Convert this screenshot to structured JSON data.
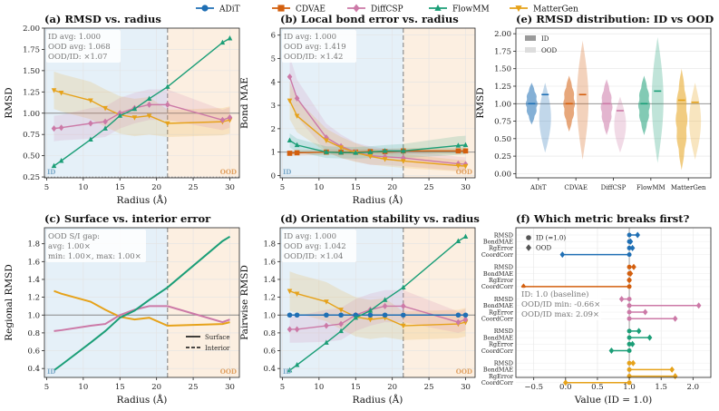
{
  "legend": {
    "entries": [
      {
        "name": "ADiT",
        "color": "#1f6fb4",
        "marker": "circle"
      },
      {
        "name": "CDVAE",
        "color": "#d35f0e",
        "marker": "square"
      },
      {
        "name": "DiffCSP",
        "color": "#cc79a7",
        "marker": "diamond"
      },
      {
        "name": "FlowMM",
        "color": "#1b9e77",
        "marker": "triangle-up"
      },
      {
        "name": "MatterGen",
        "color": "#e6a21a",
        "marker": "triangle-down"
      }
    ]
  },
  "chart_data": [
    {
      "id": "a",
      "type": "line",
      "title": "(a) RMSD vs. radius",
      "xlabel": "Radius (Å)",
      "ylabel": "RMSD",
      "xlim": [
        4.7,
        31.3
      ],
      "ylim": [
        0.24,
        2.0
      ],
      "xticks": [
        5,
        10,
        15,
        20,
        25,
        30
      ],
      "yticks": [
        0.25,
        0.5,
        0.75,
        1.0,
        1.25,
        1.5,
        1.75,
        2.0
      ],
      "ytick_labels": [
        "0.25",
        "0.50",
        "0.75",
        "1.00",
        "1.25",
        "1.50",
        "1.75",
        "2.00"
      ],
      "id_region": [
        4.7,
        21.5
      ],
      "ood_region": [
        21.5,
        31.3
      ],
      "boundary": 21.5,
      "region_labels": {
        "id": "ID",
        "ood": "OOD"
      },
      "hline": 1.0,
      "dotted_hline": 0.25,
      "annotation": [
        "ID avg: 1.000",
        "OOD avg: 1.068",
        "OOD/ID: ×1.07"
      ],
      "x": [
        6,
        7,
        11,
        13,
        15,
        17,
        19,
        21.5,
        29,
        30
      ],
      "series": [
        {
          "name": "MatterGen",
          "values": [
            1.27,
            1.24,
            1.15,
            1.06,
            0.98,
            0.95,
            0.97,
            0.88,
            0.9,
            0.92
          ],
          "band": [
            0.22,
            0.22,
            0.22,
            0.22,
            0.22,
            0.22,
            0.22,
            0.16,
            0.16,
            0.16
          ]
        },
        {
          "name": "DiffCSP",
          "values": [
            0.82,
            0.83,
            0.88,
            0.9,
            1.0,
            1.06,
            1.1,
            1.1,
            0.92,
            0.95
          ],
          "band": [
            0.15,
            0.15,
            0.18,
            0.18,
            0.18,
            0.18,
            0.18,
            0.18,
            0.12,
            0.12
          ]
        },
        {
          "name": "FlowMM",
          "values": [
            0.38,
            0.44,
            0.69,
            0.82,
            0.97,
            1.05,
            1.17,
            1.31,
            1.83,
            1.88
          ]
        }
      ]
    },
    {
      "id": "b",
      "type": "line",
      "title": "(b) Local bond error vs. radius",
      "xlabel": "Radius (Å)",
      "ylabel": "Bond MAE",
      "xlim": [
        4.7,
        31.3
      ],
      "ylim": [
        -0.1,
        6.3
      ],
      "xticks": [
        5,
        10,
        15,
        20,
        25,
        30
      ],
      "yticks": [
        0,
        1,
        2,
        3,
        4,
        5,
        6
      ],
      "id_region": [
        4.7,
        21.5
      ],
      "ood_region": [
        21.5,
        31.3
      ],
      "boundary": 21.5,
      "region_labels": {
        "id": "ID",
        "ood": "OOD"
      },
      "hline": 1.0,
      "annotation": [
        "ID avg: 1.000",
        "OOD avg: 1.419",
        "OOD/ID: ×1.42"
      ],
      "x": [
        6,
        7,
        11,
        13,
        15,
        17,
        19,
        21.5,
        29,
        30
      ],
      "series": [
        {
          "name": "CDVAE",
          "values": [
            0.95,
            0.97,
            1.0,
            1.0,
            1.0,
            1.02,
            1.02,
            1.05,
            1.05,
            1.05
          ],
          "band": [
            0.12,
            0.12,
            0.12,
            0.12,
            0.12,
            0.12,
            0.12,
            0.12,
            0.12,
            0.12
          ]
        },
        {
          "name": "DiffCSP",
          "values": [
            4.22,
            3.3,
            1.62,
            1.25,
            1.0,
            0.85,
            0.8,
            0.75,
            0.5,
            0.48
          ],
          "band": [
            0.9,
            0.8,
            0.6,
            0.5,
            0.4,
            0.4,
            0.35,
            0.35,
            0.3,
            0.3
          ]
        },
        {
          "name": "MatterGen",
          "values": [
            3.2,
            2.55,
            1.5,
            1.2,
            0.98,
            0.82,
            0.7,
            0.62,
            0.42,
            0.4
          ],
          "band": [
            0.8,
            0.7,
            0.5,
            0.45,
            0.4,
            0.35,
            0.3,
            0.3,
            0.25,
            0.25
          ]
        },
        {
          "name": "FlowMM",
          "values": [
            1.5,
            1.3,
            1.0,
            0.98,
            0.97,
            1.0,
            1.05,
            1.05,
            1.28,
            1.3
          ],
          "band": [
            0.3,
            0.28,
            0.25,
            0.25,
            0.25,
            0.25,
            0.25,
            0.3,
            0.4,
            0.4
          ]
        }
      ]
    },
    {
      "id": "e",
      "type": "violin",
      "title": "(e) RMSD distribution: ID vs OOD",
      "ylabel": "RMSD",
      "xlim": [
        -0.6,
        4.6
      ],
      "ylim": [
        -0.06,
        2.08
      ],
      "yticks": [
        0,
        0.25,
        0.5,
        0.75,
        1.0,
        1.25,
        1.5,
        1.75,
        2.0
      ],
      "ytick_labels": [
        "0.00",
        "0.25",
        "0.50",
        "0.75",
        "1.00",
        "1.25",
        "1.50",
        "1.75",
        "2.00"
      ],
      "hline": 1.0,
      "categories": [
        "ADiT",
        "CDVAE",
        "DiffCSP",
        "FlowMM",
        "MatterGen"
      ],
      "legend": [
        "ID",
        "OOD"
      ],
      "id_range": [
        [
          0.7,
          1.3
        ],
        [
          0.6,
          1.4
        ],
        [
          0.55,
          1.35
        ],
        [
          0.55,
          1.4
        ],
        [
          0.05,
          1.5
        ]
      ],
      "ood_range": [
        [
          0.3,
          1.3
        ],
        [
          0.2,
          1.9
        ],
        [
          0.3,
          1.1
        ],
        [
          0.15,
          1.95
        ],
        [
          0.2,
          1.3
        ]
      ],
      "id_median": [
        1.0,
        1.0,
        1.0,
        1.0,
        1.05
      ],
      "ood_median": [
        1.13,
        1.13,
        0.9,
        1.18,
        1.02
      ]
    },
    {
      "id": "c",
      "type": "line",
      "title": "(c) Surface vs. interior error",
      "xlabel": "Radius (Å)",
      "ylabel": "Regional RMSD",
      "xlim": [
        4.7,
        31.3
      ],
      "ylim": [
        0.3,
        1.98
      ],
      "xticks": [
        5,
        10,
        15,
        20,
        25,
        30
      ],
      "yticks": [
        0.4,
        0.6,
        0.8,
        1.0,
        1.2,
        1.4,
        1.6,
        1.8
      ],
      "ytick_labels": [
        "0.4",
        "0.6",
        "0.8",
        "1.0",
        "1.2",
        "1.4",
        "1.6",
        "1.8"
      ],
      "id_region": [
        4.7,
        21.5
      ],
      "ood_region": [
        21.5,
        31.3
      ],
      "boundary": 21.5,
      "region_labels": {
        "id": "ID",
        "ood": "OOD"
      },
      "hline": 1.0,
      "annotation": [
        "OOD S/I gap:",
        "avg: 1.00×",
        "min: 1.00×, max: 1.00×"
      ],
      "line_legend": [
        "Surface",
        "Interior"
      ],
      "x": [
        6,
        7,
        11,
        13,
        15,
        17,
        19,
        21.5,
        29,
        30
      ],
      "series": [
        {
          "name": "MatterGen",
          "values": [
            1.27,
            1.24,
            1.15,
            1.06,
            0.98,
            0.95,
            0.97,
            0.88,
            0.9,
            0.92
          ]
        },
        {
          "name": "DiffCSP",
          "values": [
            0.82,
            0.83,
            0.88,
            0.9,
            1.0,
            1.06,
            1.1,
            1.1,
            0.92,
            0.95
          ]
        },
        {
          "name": "FlowMM",
          "values": [
            0.38,
            0.44,
            0.69,
            0.82,
            0.97,
            1.05,
            1.17,
            1.31,
            1.83,
            1.88
          ]
        }
      ]
    },
    {
      "id": "d",
      "type": "line",
      "title": "(d) Orientation stability vs. radius",
      "xlabel": "Radius (Å)",
      "ylabel": "Pairwise RMSD",
      "xlim": [
        4.7,
        31.3
      ],
      "ylim": [
        0.3,
        1.98
      ],
      "xticks": [
        5,
        10,
        15,
        20,
        25,
        30
      ],
      "yticks": [
        0.4,
        0.6,
        0.8,
        1.0,
        1.2,
        1.4,
        1.6,
        1.8
      ],
      "ytick_labels": [
        "0.4",
        "0.6",
        "0.8",
        "1.0",
        "1.2",
        "1.4",
        "1.6",
        "1.8"
      ],
      "id_region": [
        4.7,
        21.5
      ],
      "ood_region": [
        21.5,
        31.3
      ],
      "boundary": 21.5,
      "region_labels": {
        "id": "ID",
        "ood": "OOD"
      },
      "hline": 1.0,
      "annotation": [
        "ID avg: 1.000",
        "OOD avg: 1.042",
        "OOD/ID: ×1.04"
      ],
      "x": [
        6,
        7,
        11,
        13,
        15,
        17,
        19,
        21.5,
        29,
        30
      ],
      "series": [
        {
          "name": "MatterGen",
          "values": [
            1.27,
            1.24,
            1.15,
            1.06,
            0.98,
            0.95,
            0.97,
            0.88,
            0.9,
            0.92
          ],
          "band": [
            0.22,
            0.22,
            0.22,
            0.22,
            0.22,
            0.22,
            0.22,
            0.16,
            0.16,
            0.16
          ]
        },
        {
          "name": "DiffCSP",
          "values": [
            0.84,
            0.84,
            0.88,
            0.9,
            1.0,
            1.06,
            1.1,
            1.1,
            0.92,
            0.95
          ],
          "band": [
            0.15,
            0.15,
            0.18,
            0.18,
            0.18,
            0.18,
            0.18,
            0.18,
            0.12,
            0.12
          ]
        },
        {
          "name": "ADiT",
          "values": [
            1.0,
            1.0,
            1.0,
            1.0,
            1.0,
            1.0,
            1.0,
            1.0,
            1.0,
            1.0
          ]
        },
        {
          "name": "FlowMM",
          "values": [
            0.38,
            0.44,
            0.69,
            0.82,
            0.97,
            1.05,
            1.17,
            1.31,
            1.83,
            1.88
          ]
        }
      ]
    },
    {
      "id": "f",
      "type": "dot",
      "title": "(f) Which metric breaks first?",
      "xlabel": "Value (ID = 1.0)",
      "xlim": [
        -0.78,
        2.28
      ],
      "xticks": [
        -0.5,
        0.0,
        0.5,
        1.0,
        1.5,
        2.0
      ],
      "xtick_labels": [
        "−0.5",
        "0.0",
        "0.5",
        "1.0",
        "1.5",
        "2.0"
      ],
      "metrics": [
        "RMSD",
        "BondMAE",
        "RgError",
        "CoordCorr"
      ],
      "legend": [
        "ID (=1.0)",
        "OOD"
      ],
      "annotation": [
        "ID: 1.0 (baseline)",
        "OOD/ID min: -0.66×",
        "OOD/ID max: 2.09×"
      ],
      "groups": [
        {
          "name": "ADiT",
          "values": [
            1.13,
            1.02,
            1.05,
            -0.05
          ]
        },
        {
          "name": "CDVAE",
          "values": [
            1.07,
            1.02,
            1.0,
            -0.66
          ]
        },
        {
          "name": "DiffCSP",
          "values": [
            0.88,
            2.09,
            1.25,
            1.72
          ]
        },
        {
          "name": "FlowMM",
          "values": [
            1.15,
            1.32,
            1.05,
            0.72
          ]
        },
        {
          "name": "MatterGen",
          "values": [
            1.06,
            1.67,
            1.72,
            0.0
          ]
        }
      ]
    }
  ]
}
